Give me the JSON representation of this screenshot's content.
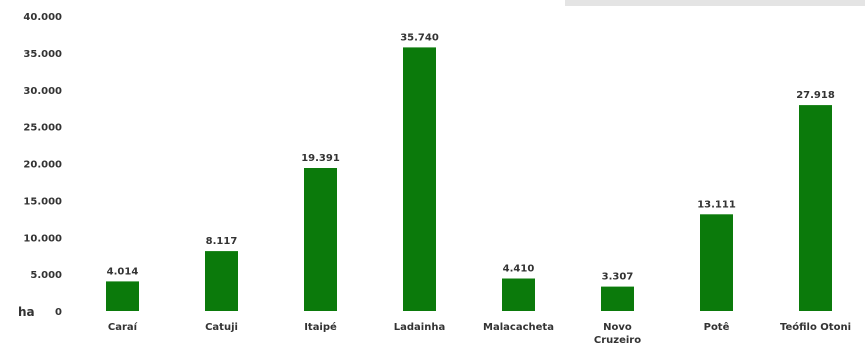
{
  "chart_data": {
    "type": "bar",
    "title": "",
    "xlabel": "",
    "ylabel": "",
    "y_unit_label": "ha",
    "categories": [
      "Caraí",
      "Catuji",
      "Itaipé",
      "Ladainha",
      "Malacacheta",
      "Novo Cruzeiro",
      "Potê",
      "Teófilo Otoni"
    ],
    "values": [
      4014,
      8117,
      19391,
      35740,
      4410,
      3307,
      13111,
      27918
    ],
    "value_labels": [
      "4.014",
      "8.117",
      "19.391",
      "35.740",
      "4.410",
      "3.307",
      "13.111",
      "27.918"
    ],
    "y_ticks": [
      0,
      5000,
      10000,
      15000,
      20000,
      25000,
      30000,
      35000,
      40000
    ],
    "y_tick_labels": [
      "0",
      "5.000",
      "10.000",
      "15.000",
      "20.000",
      "25.000",
      "30.000",
      "35.000",
      "40.000"
    ],
    "ylim": [
      0,
      40000
    ],
    "grid": false,
    "legend": "none",
    "bar_color": "#0b7a0b"
  }
}
